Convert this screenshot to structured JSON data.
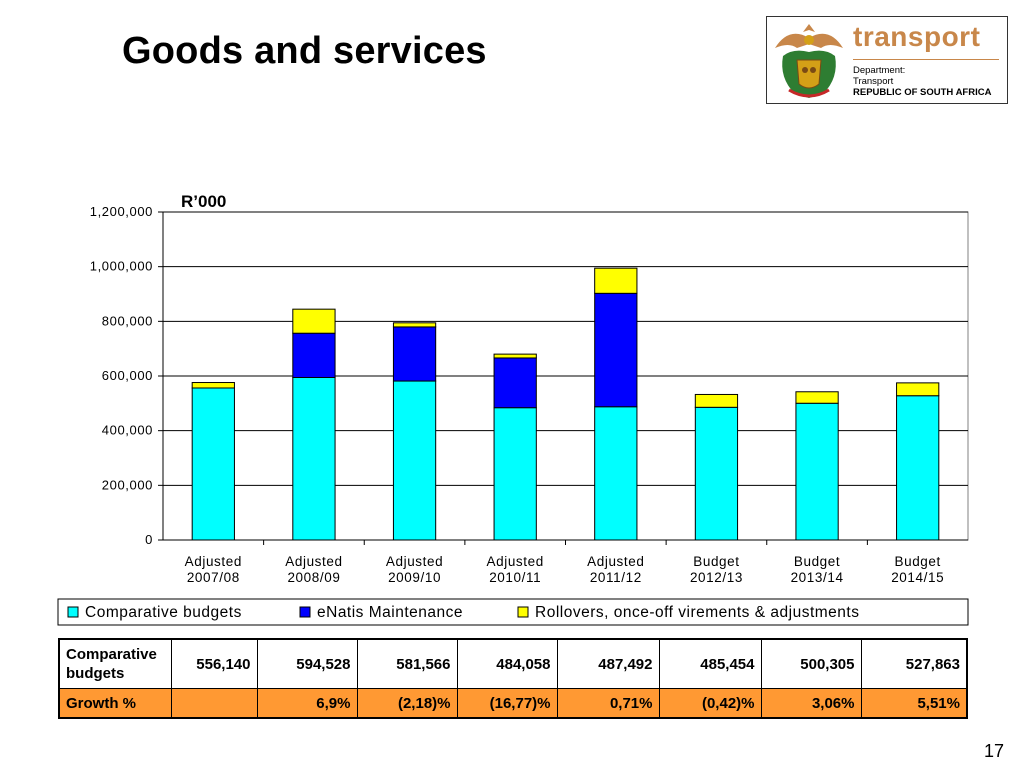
{
  "slide": {
    "title": "Goods and services",
    "page_number": "17"
  },
  "logo": {
    "word": "transport",
    "line1": "Department:",
    "line2": "Transport",
    "line3": "REPUBLIC OF SOUTH AFRICA",
    "icon": "south-africa-coat-of-arms"
  },
  "chart_data": {
    "type": "bar",
    "stacked": true,
    "unit_label": "R’000",
    "categories": [
      [
        "Adjusted",
        "2007/08"
      ],
      [
        "Adjusted",
        "2008/09"
      ],
      [
        "Adjusted",
        "2009/10"
      ],
      [
        "Adjusted",
        "2010/11"
      ],
      [
        "Adjusted",
        "2011/12"
      ],
      [
        "Budget",
        "2012/13"
      ],
      [
        "Budget",
        "2013/14"
      ],
      [
        "Budget",
        "2014/15"
      ]
    ],
    "series": [
      {
        "name": "Comparative budgets",
        "color": "#00ffff",
        "values": [
          556140,
          594528,
          581566,
          484058,
          487492,
          485454,
          500305,
          527863
        ]
      },
      {
        "name": "eNatis Maintenance",
        "color": "#0000ff",
        "values": [
          0,
          162000,
          198000,
          182000,
          415000,
          0,
          0,
          0
        ]
      },
      {
        "name": "Rollovers, once-off virements & adjustments",
        "color": "#ffff00",
        "values": [
          20000,
          88000,
          15000,
          14000,
          92000,
          47000,
          42000,
          47000
        ]
      }
    ],
    "ylim": [
      0,
      1200000
    ],
    "yticks": [
      0,
      200000,
      400000,
      600000,
      800000,
      1000000,
      1200000
    ],
    "ytick_labels": [
      "0",
      "200,000",
      "400,000",
      "600,000",
      "800,000",
      "1,000,000",
      "1,200,000"
    ],
    "grid": true,
    "legend_position": "bottom"
  },
  "table": {
    "rows": [
      {
        "label": [
          "Comparative",
          "budgets"
        ],
        "values": [
          "556,140",
          "594,528",
          "581,566",
          "484,058",
          "487,492",
          "485,454",
          "500,305",
          "527,863"
        ]
      },
      {
        "label": [
          "Growth %"
        ],
        "values": [
          "",
          "6,9%",
          "(2,18)%",
          "(16,77)%",
          "0,71%",
          "(0,42)%",
          "3,06%",
          "5,51%"
        ]
      }
    ],
    "growth_row_color": "#ff9933"
  }
}
